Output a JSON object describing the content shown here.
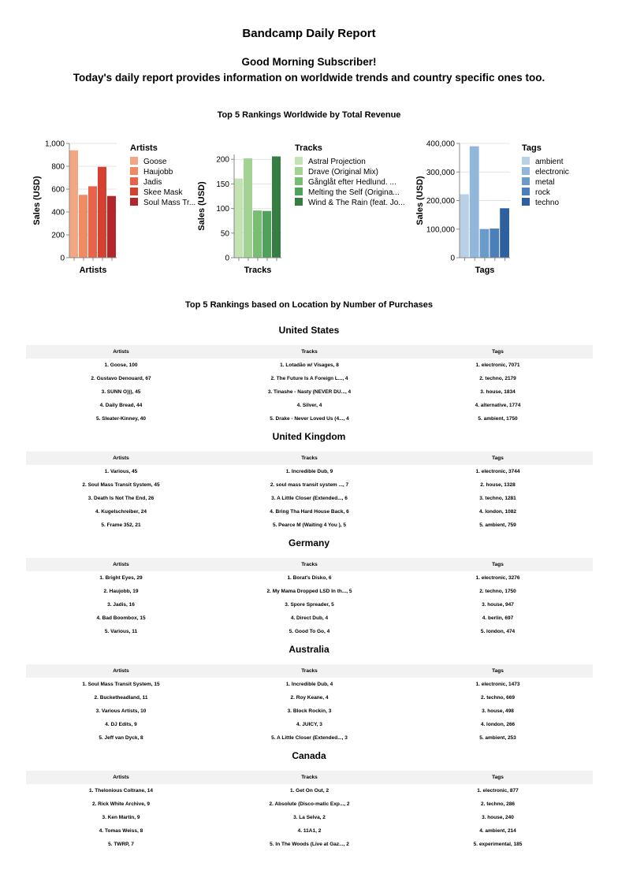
{
  "report": {
    "title": "Bandcamp Daily Report",
    "greeting": "Good Morning Subscriber!",
    "intro": "Today's daily report provides information on worldwide trends and country specific ones too."
  },
  "worldwide_title": "Top 5 Rankings Worldwide by Total Revenue",
  "location_title": "Top 5 Rankings based on Location by Number of Purchases",
  "chart_data": [
    {
      "type": "bar",
      "xlabel": "Artists",
      "ylabel": "Sales (USD)",
      "legend_title": "Artists",
      "legend_position": "right",
      "ylim": [
        0,
        1000
      ],
      "yticks": [
        "0",
        "200",
        "400",
        "600",
        "800",
        "1,000"
      ],
      "ytick_values": [
        0,
        200,
        400,
        600,
        800,
        1000
      ],
      "categories": [
        "Goose",
        "Haujobb",
        "Jadis",
        "Skee Mask",
        "Soul Mass Tr..."
      ],
      "values": [
        940,
        550,
        625,
        795,
        540
      ],
      "colors": [
        "#f4a582",
        "#ef8a62",
        "#e8634a",
        "#d6412f",
        "#b2262c"
      ]
    },
    {
      "type": "bar",
      "xlabel": "Tracks",
      "ylabel": "Sales (USD)",
      "legend_title": "Tracks",
      "legend_position": "right",
      "ylim": [
        0,
        210
      ],
      "yticks": [
        "0",
        "50",
        "100",
        "150",
        "200"
      ],
      "ytick_values": [
        0,
        50,
        100,
        150,
        200
      ],
      "categories": [
        "Astral Projection",
        "Drave (Original Mix)",
        "Gånglåt efter Hedlund. ...",
        "Melting the Self (Origina...",
        "Wind & The Rain (feat. Jo..."
      ],
      "values": [
        161,
        202,
        96,
        95,
        206
      ],
      "colors": [
        "#c3e3b4",
        "#a2d393",
        "#78bd72",
        "#4fa15b",
        "#347e43"
      ]
    },
    {
      "type": "bar",
      "xlabel": "Tags",
      "ylabel": "Sales (USD)",
      "legend_title": "Tags",
      "legend_position": "right",
      "ylim": [
        0,
        400000
      ],
      "yticks": [
        "0",
        "100,000",
        "200,000",
        "300,000",
        "400,000"
      ],
      "ytick_values": [
        0,
        100000,
        200000,
        300000,
        400000
      ],
      "categories": [
        "ambient",
        "electronic",
        "metal",
        "rock",
        "techno"
      ],
      "values": [
        222000,
        390000,
        100000,
        102000,
        173000
      ],
      "colors": [
        "#b8d1e6",
        "#91b7da",
        "#6b9bc9",
        "#4a7fb9",
        "#2e5f9f"
      ]
    }
  ],
  "table_headers": {
    "artists": "Artists",
    "tracks": "Tracks",
    "tags": "Tags"
  },
  "countries": [
    {
      "name": "United States",
      "rows": [
        {
          "artist": "1. Goose, 100",
          "track": "1. Lotadão w/ Visages, 8",
          "tag": "1. electronic, 7071"
        },
        {
          "artist": "2. Gustavo Denouard, 67",
          "track": "2. The Future Is A Foreign L..., 4",
          "tag": "2. techno, 2179"
        },
        {
          "artist": "3. SUNN O))), 45",
          "track": "3. Tinashe - Nasty (NEVER DU..., 4",
          "tag": "3. house, 1834"
        },
        {
          "artist": "4. Daily Bread, 44",
          "track": "4. Silver, 4",
          "tag": "4. alternative, 1774"
        },
        {
          "artist": "5. Sleater-Kinney, 40",
          "track": "5. Drake - Never Loved Us (4..., 4",
          "tag": "5. ambient, 1750"
        }
      ]
    },
    {
      "name": "United Kingdom",
      "rows": [
        {
          "artist": "1. Various, 45",
          "track": "1. Incredible Dub, 9",
          "tag": "1. electronic, 3744"
        },
        {
          "artist": "2. Soul Mass Transit System, 45",
          "track": "2. soul mass transit system ..., 7",
          "tag": "2. house, 1328"
        },
        {
          "artist": "3. Death Is Not The End, 26",
          "track": "3. A Little Closer (Extended..., 6",
          "tag": "3. techno, 1281"
        },
        {
          "artist": "4. Kugelschreiber, 24",
          "track": "4. Bring Tha Hard House Back, 6",
          "tag": "4. london, 1082"
        },
        {
          "artist": "5. Frame 352, 21",
          "track": "5. Pearce M (Waiting 4 You ), 5",
          "tag": "5. ambient, 759"
        }
      ]
    },
    {
      "name": "Germany",
      "rows": [
        {
          "artist": "1. Bright Eyes, 29",
          "track": "1. Borat's Disko, 6",
          "tag": "1. electronic, 3276"
        },
        {
          "artist": "2. Haujobb, 19",
          "track": "2. My Mama Dropped LSD In th..., 5",
          "tag": "2. techno, 1750"
        },
        {
          "artist": "3. Jadis, 16",
          "track": "3. Spore Spreader, 5",
          "tag": "3. house, 947"
        },
        {
          "artist": "4. Bad Boombox, 15",
          "track": "4. Direct Dub, 4",
          "tag": "4. berlin, 697"
        },
        {
          "artist": "5. Various, 11",
          "track": "5. Good To Go, 4",
          "tag": "5. london, 474"
        }
      ]
    },
    {
      "name": "Australia",
      "rows": [
        {
          "artist": "1. Soul Mass Transit System, 15",
          "track": "1. Incredible Dub, 4",
          "tag": "1. electronic, 1473"
        },
        {
          "artist": "2. Bucketheadland, 11",
          "track": "2. Roy Keane, 4",
          "tag": "2. techno, 669"
        },
        {
          "artist": "3. Various Artists, 10",
          "track": "3. Block Rockin, 3",
          "tag": "3. house, 498"
        },
        {
          "artist": "4. DJ Edits, 9",
          "track": "4. JUICY, 3",
          "tag": "4. london, 266"
        },
        {
          "artist": "5. Jeff van Dyck, 8",
          "track": "5. A Little Closer (Extended..., 3",
          "tag": "5. ambient, 253"
        }
      ]
    },
    {
      "name": "Canada",
      "rows": [
        {
          "artist": "1. Thelonious Coltrane, 14",
          "track": "1. Get On Out, 2",
          "tag": "1. electronic, 877"
        },
        {
          "artist": "2. Rick White Archive, 9",
          "track": "2. Absolute (Disco-matic Exp..., 2",
          "tag": "2. techno, 286"
        },
        {
          "artist": "3. Ken Martin, 9",
          "track": "3. La Selva, 2",
          "tag": "3. house, 240"
        },
        {
          "artist": "4. Tomas Weiss, 8",
          "track": "4. 11A1, 2",
          "tag": "4. ambient, 214"
        },
        {
          "artist": "5. TWRP, 7",
          "track": "5. In The Woods (Live at Gaz..., 2",
          "tag": "5. experimental, 185"
        }
      ]
    }
  ]
}
